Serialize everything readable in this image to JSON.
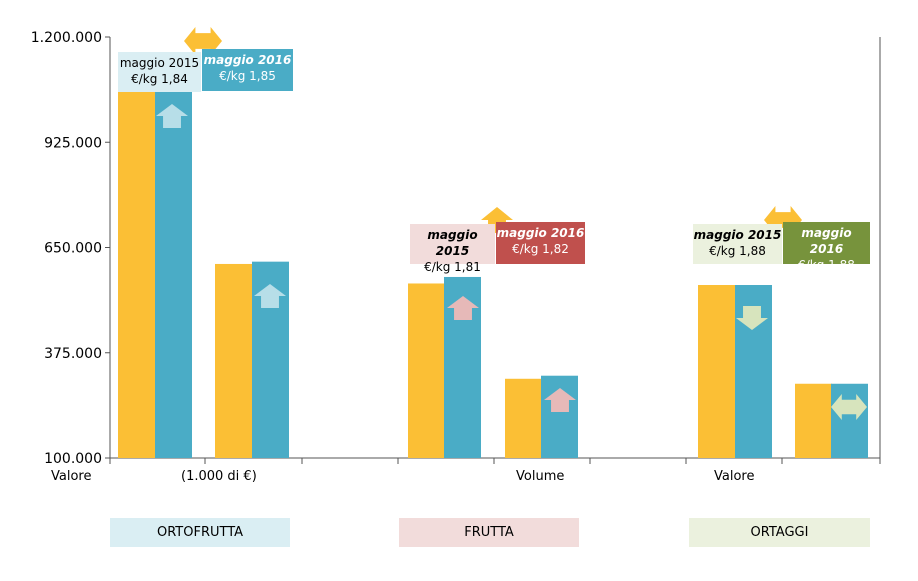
{
  "chart_data": {
    "type": "bar",
    "ylim": [
      100000,
      1200000
    ],
    "yticks": [
      "1.200.000",
      "925.000",
      "650.000",
      "375.000",
      "100.000"
    ],
    "ytick_values": [
      1200000,
      925000,
      650000,
      375000,
      100000
    ],
    "xlabels": [
      "Valore",
      "(1.000 di €)",
      "Volume",
      "Valore"
    ],
    "series": [
      {
        "name": "maggio 2015",
        "color": "#FBBF35"
      },
      {
        "name": "maggio 2016",
        "color": "#4AACC6"
      }
    ],
    "groups": [
      {
        "category": "ORTOFRUTTA",
        "bars": [
          {
            "values": [
              1100000,
              1110000
            ],
            "change": "up"
          },
          {
            "values": [
              607000,
              613000
            ],
            "change": "up"
          }
        ]
      },
      {
        "category": "FRUTTA",
        "bars": [
          {
            "values": [
              556000,
              573000
            ],
            "change": "up"
          },
          {
            "values": [
              307000,
              315000
            ],
            "change": "up"
          }
        ]
      },
      {
        "category": "ORTAGGI",
        "bars": [
          {
            "values": [
              552000,
              552000
            ],
            "change": "down"
          },
          {
            "values": [
              294000,
              294000
            ],
            "change": "same"
          }
        ]
      }
    ]
  },
  "callouts": [
    {
      "period": "maggio 2015",
      "price": "€/kg 1,84"
    },
    {
      "period": "maggio 2016",
      "price": "€/kg 1,85"
    },
    {
      "period": "maggio 2015",
      "price": "€/kg 1,81"
    },
    {
      "period": "maggio 2016",
      "price": "€/kg 1,82"
    },
    {
      "period": "maggio 2015",
      "price": "€/kg 1,88"
    },
    {
      "period": "maggio 2016",
      "price": "€/kg 1,88"
    }
  ],
  "categories": [
    {
      "label": "ORTOFRUTTA",
      "color": "#DAEEF3"
    },
    {
      "label": "FRUTTA",
      "color": "#F2DCDB"
    },
    {
      "label": "ORTAGGI",
      "color": "#EBF1DE"
    }
  ],
  "colors": {
    "ortofrutta_2016": "#4AACC6",
    "frutta_2016": "#C0504D",
    "ortaggi_2016": "#77933C",
    "arrow_orange": "#FBBF35",
    "arrow_blue": "#B7DEE8",
    "arrow_pink": "#E6B9B8",
    "arrow_green": "#D7E4BD"
  }
}
